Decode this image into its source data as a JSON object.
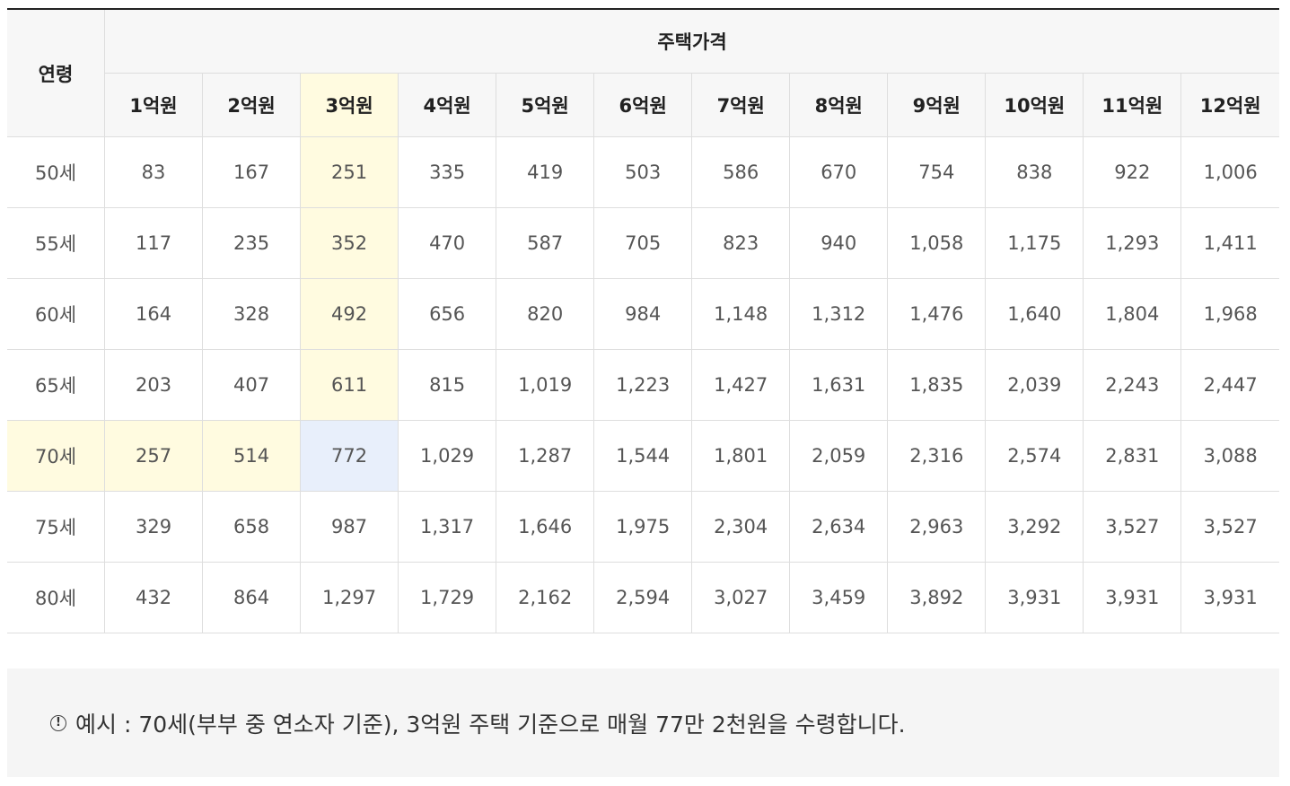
{
  "table": {
    "age_header": "연령",
    "price_header": "주택가격",
    "price_columns": [
      "1억원",
      "2억원",
      "3억원",
      "4억원",
      "5억원",
      "6억원",
      "7억원",
      "8억원",
      "9억원",
      "10억원",
      "11억원",
      "12억원"
    ],
    "rows": [
      {
        "age": "50세",
        "values": [
          "83",
          "167",
          "251",
          "335",
          "419",
          "503",
          "586",
          "670",
          "754",
          "838",
          "922",
          "1,006"
        ]
      },
      {
        "age": "55세",
        "values": [
          "117",
          "235",
          "352",
          "470",
          "587",
          "705",
          "823",
          "940",
          "1,058",
          "1,175",
          "1,293",
          "1,411"
        ]
      },
      {
        "age": "60세",
        "values": [
          "164",
          "328",
          "492",
          "656",
          "820",
          "984",
          "1,148",
          "1,312",
          "1,476",
          "1,640",
          "1,804",
          "1,968"
        ]
      },
      {
        "age": "65세",
        "values": [
          "203",
          "407",
          "611",
          "815",
          "1,019",
          "1,223",
          "1,427",
          "1,631",
          "1,835",
          "2,039",
          "2,243",
          "2,447"
        ]
      },
      {
        "age": "70세",
        "values": [
          "257",
          "514",
          "772",
          "1,029",
          "1,287",
          "1,544",
          "1,801",
          "2,059",
          "2,316",
          "2,574",
          "2,831",
          "3,088"
        ]
      },
      {
        "age": "75세",
        "values": [
          "329",
          "658",
          "987",
          "1,317",
          "1,646",
          "1,975",
          "2,304",
          "2,634",
          "2,963",
          "3,292",
          "3,527",
          "3,527"
        ]
      },
      {
        "age": "80세",
        "values": [
          "432",
          "864",
          "1,297",
          "1,729",
          "2,162",
          "2,594",
          "3,027",
          "3,459",
          "3,892",
          "3,931",
          "3,931",
          "3,931"
        ]
      }
    ],
    "highlight": {
      "column_label": "3억원",
      "row_label": "70세",
      "yellow": "#fffbe0",
      "blue": "#e8effb"
    }
  },
  "note": {
    "icon": "info-icon",
    "text": "예시 : 70세(부부 중 연소자 기준), 3억원 주택 기준으로 매월 77만 2천원을 수령합니다."
  }
}
